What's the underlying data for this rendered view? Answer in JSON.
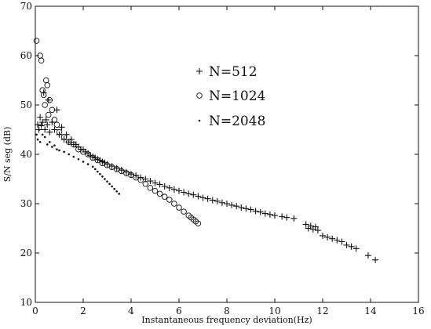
{
  "chart_data": {
    "type": "scatter",
    "title": "",
    "xlabel": "Instantaneous frequency deviation(Hz)",
    "ylabel": "S/N seg (dB)",
    "xlim": [
      0,
      16
    ],
    "ylim": [
      10,
      70
    ],
    "x_ticks": [
      "0",
      "2",
      "4",
      "6",
      "8",
      "10",
      "12",
      "14",
      "16"
    ],
    "y_ticks": [
      "10",
      "20",
      "30",
      "40",
      "50",
      "60",
      "70"
    ],
    "grid": false,
    "legend_position": "upper-center",
    "series": [
      {
        "name": "N=512",
        "marker": "plus",
        "points": [
          [
            0.1,
            46.0
          ],
          [
            0.15,
            45.0
          ],
          [
            0.2,
            47.5
          ],
          [
            0.25,
            45.8
          ],
          [
            0.3,
            46.5
          ],
          [
            0.35,
            52.5
          ],
          [
            0.4,
            45.0
          ],
          [
            0.45,
            47.0
          ],
          [
            0.5,
            46.0
          ],
          [
            0.55,
            51.0
          ],
          [
            0.6,
            44.5
          ],
          [
            0.7,
            46.5
          ],
          [
            0.8,
            45.0
          ],
          [
            0.9,
            49.0
          ],
          [
            1.0,
            44.0
          ],
          [
            1.1,
            45.5
          ],
          [
            1.2,
            43.0
          ],
          [
            1.3,
            44.0
          ],
          [
            1.4,
            42.5
          ],
          [
            1.5,
            43.0
          ],
          [
            1.6,
            42.0
          ],
          [
            1.7,
            42.0
          ],
          [
            1.8,
            41.5
          ],
          [
            1.9,
            41.0
          ],
          [
            2.0,
            41.0
          ],
          [
            2.1,
            40.5
          ],
          [
            2.2,
            40.2
          ],
          [
            2.3,
            39.8
          ],
          [
            2.4,
            39.5
          ],
          [
            2.5,
            39.3
          ],
          [
            2.6,
            39.0
          ],
          [
            2.7,
            38.8
          ],
          [
            2.8,
            38.5
          ],
          [
            2.9,
            38.3
          ],
          [
            3.0,
            38.0
          ],
          [
            3.2,
            37.6
          ],
          [
            3.4,
            37.2
          ],
          [
            3.6,
            36.8
          ],
          [
            3.8,
            36.4
          ],
          [
            4.0,
            36.0
          ],
          [
            4.2,
            35.7
          ],
          [
            4.4,
            35.3
          ],
          [
            4.6,
            35.0
          ],
          [
            4.8,
            34.6
          ],
          [
            5.0,
            34.2
          ],
          [
            5.2,
            33.9
          ],
          [
            5.4,
            33.5
          ],
          [
            5.6,
            33.2
          ],
          [
            5.8,
            32.9
          ],
          [
            6.0,
            32.6
          ],
          [
            6.2,
            32.3
          ],
          [
            6.4,
            32.0
          ],
          [
            6.6,
            31.8
          ],
          [
            6.8,
            31.5
          ],
          [
            7.0,
            31.2
          ],
          [
            7.2,
            31.0
          ],
          [
            7.4,
            30.7
          ],
          [
            7.6,
            30.5
          ],
          [
            7.8,
            30.2
          ],
          [
            8.0,
            30.0
          ],
          [
            8.2,
            29.7
          ],
          [
            8.4,
            29.5
          ],
          [
            8.6,
            29.2
          ],
          [
            8.8,
            29.0
          ],
          [
            9.0,
            28.8
          ],
          [
            9.2,
            28.5
          ],
          [
            9.4,
            28.3
          ],
          [
            9.6,
            28.0
          ],
          [
            9.8,
            27.8
          ],
          [
            10.0,
            27.6
          ],
          [
            10.3,
            27.4
          ],
          [
            10.5,
            27.2
          ],
          [
            10.8,
            27.0
          ],
          [
            11.3,
            25.8
          ],
          [
            11.4,
            25.0
          ],
          [
            11.5,
            25.5
          ],
          [
            11.6,
            24.8
          ],
          [
            11.7,
            25.3
          ],
          [
            11.8,
            24.6
          ],
          [
            12.0,
            23.5
          ],
          [
            12.2,
            23.2
          ],
          [
            12.4,
            22.9
          ],
          [
            12.6,
            22.6
          ],
          [
            12.8,
            22.3
          ],
          [
            13.0,
            21.6
          ],
          [
            13.2,
            21.3
          ],
          [
            13.4,
            20.9
          ],
          [
            13.9,
            19.5
          ],
          [
            14.2,
            18.6
          ]
        ]
      },
      {
        "name": "N=1024",
        "marker": "circle",
        "points": [
          [
            0.05,
            63.0
          ],
          [
            0.2,
            60.0
          ],
          [
            0.25,
            59.0
          ],
          [
            0.3,
            53.0
          ],
          [
            0.35,
            52.0
          ],
          [
            0.4,
            50.0
          ],
          [
            0.45,
            55.0
          ],
          [
            0.5,
            54.0
          ],
          [
            0.55,
            48.0
          ],
          [
            0.6,
            51.0
          ],
          [
            0.7,
            49.0
          ],
          [
            0.8,
            47.0
          ],
          [
            0.9,
            46.0
          ],
          [
            1.0,
            44.5
          ],
          [
            1.2,
            43.5
          ],
          [
            1.4,
            42.5
          ],
          [
            1.6,
            42.0
          ],
          [
            1.8,
            41.0
          ],
          [
            2.0,
            40.5
          ],
          [
            2.2,
            40.0
          ],
          [
            2.4,
            39.3
          ],
          [
            2.6,
            38.8
          ],
          [
            2.8,
            38.2
          ],
          [
            3.0,
            37.8
          ],
          [
            3.2,
            37.4
          ],
          [
            3.4,
            37.0
          ],
          [
            3.6,
            36.6
          ],
          [
            3.8,
            36.2
          ],
          [
            4.0,
            35.8
          ],
          [
            4.2,
            35.3
          ],
          [
            4.4,
            34.8
          ],
          [
            4.6,
            34.0
          ],
          [
            4.8,
            33.2
          ],
          [
            5.0,
            32.6
          ],
          [
            5.2,
            32.0
          ],
          [
            5.4,
            31.4
          ],
          [
            5.6,
            30.8
          ],
          [
            5.8,
            30.0
          ],
          [
            6.0,
            29.2
          ],
          [
            6.2,
            28.4
          ],
          [
            6.4,
            27.6
          ],
          [
            6.5,
            27.2
          ],
          [
            6.6,
            26.8
          ],
          [
            6.7,
            26.4
          ],
          [
            6.8,
            26.0
          ]
        ]
      },
      {
        "name": "N=2048",
        "marker": "dot",
        "points": [
          [
            0.05,
            44.0
          ],
          [
            0.1,
            43.0
          ],
          [
            0.15,
            45.0
          ],
          [
            0.2,
            42.5
          ],
          [
            0.3,
            44.0
          ],
          [
            0.4,
            43.5
          ],
          [
            0.5,
            42.0
          ],
          [
            0.6,
            42.5
          ],
          [
            0.7,
            41.5
          ],
          [
            0.8,
            41.8
          ],
          [
            0.9,
            41.0
          ],
          [
            1.0,
            40.8
          ],
          [
            1.2,
            40.5
          ],
          [
            1.4,
            40.0
          ],
          [
            1.6,
            39.5
          ],
          [
            1.8,
            39.0
          ],
          [
            2.0,
            38.5
          ],
          [
            2.2,
            38.0
          ],
          [
            2.4,
            37.5
          ],
          [
            2.5,
            37.0
          ],
          [
            2.6,
            36.5
          ],
          [
            2.7,
            36.0
          ],
          [
            2.8,
            35.5
          ],
          [
            2.9,
            35.0
          ],
          [
            3.0,
            34.5
          ],
          [
            3.1,
            34.0
          ],
          [
            3.2,
            33.5
          ],
          [
            3.3,
            33.0
          ],
          [
            3.4,
            32.5
          ],
          [
            3.5,
            32.0
          ]
        ]
      }
    ]
  }
}
